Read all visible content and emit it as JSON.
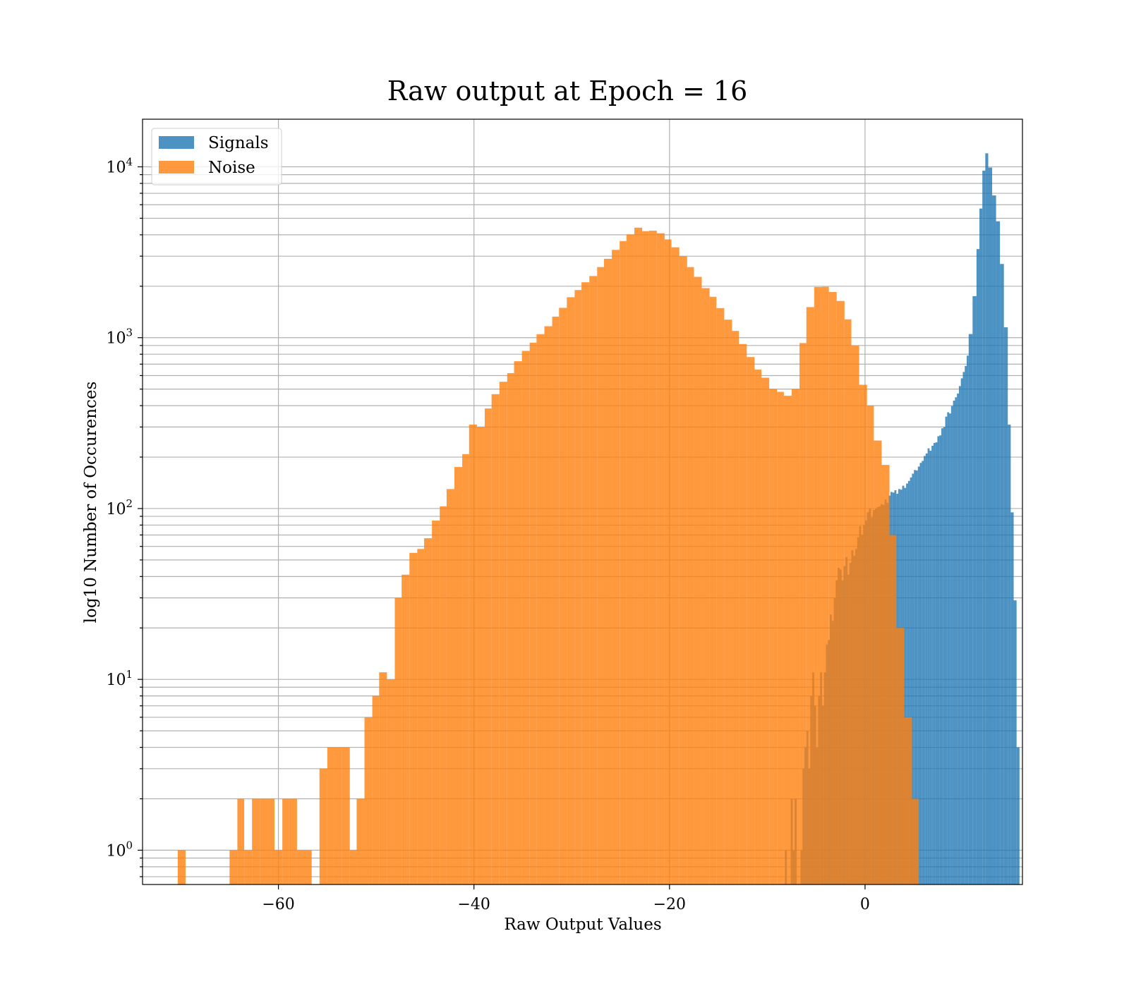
{
  "chart_data": {
    "type": "bar",
    "title": "Raw output at Epoch = 16",
    "xlabel": "Raw Output Values",
    "ylabel": "log10 Number of Occurences",
    "yscale": "log",
    "xlim": [
      -73.9,
      16.1
    ],
    "ylim": [
      0.63,
      19000
    ],
    "x_ticks": [
      -60,
      -40,
      -20,
      0
    ],
    "x_tick_labels": [
      "−60",
      "−40",
      "−20",
      "0"
    ],
    "y_tick_exponents": [
      0,
      1,
      2,
      3,
      4
    ],
    "y_tick_base": "10",
    "grid": true,
    "legend_position": "top-left",
    "series": [
      {
        "name": "Signals",
        "color": "#1f77b4",
        "opacity": 0.8,
        "bins": [
          [
            -8.2,
            -8.0,
            1
          ],
          [
            -7.6,
            -7.4,
            2
          ],
          [
            -7.4,
            -7.2,
            1
          ],
          [
            -7.2,
            -7.0,
            2
          ],
          [
            -6.6,
            -6.4,
            1
          ],
          [
            -6.4,
            -6.2,
            3
          ],
          [
            -6.2,
            -6.0,
            4
          ],
          [
            -6.0,
            -5.8,
            5
          ],
          [
            -5.8,
            -5.6,
            3
          ],
          [
            -5.6,
            -5.4,
            8
          ],
          [
            -5.4,
            -5.2,
            11
          ],
          [
            -5.2,
            -5.0,
            7
          ],
          [
            -5.0,
            -4.8,
            4
          ],
          [
            -4.8,
            -4.6,
            8
          ],
          [
            -4.6,
            -4.4,
            11
          ],
          [
            -4.4,
            -4.2,
            7
          ],
          [
            -4.2,
            -4.0,
            11
          ],
          [
            -4.0,
            -3.8,
            16
          ],
          [
            -3.8,
            -3.6,
            17
          ],
          [
            -3.6,
            -3.4,
            24
          ],
          [
            -3.4,
            -3.2,
            22
          ],
          [
            -3.2,
            -3.0,
            30
          ],
          [
            -3.0,
            -2.8,
            38
          ],
          [
            -2.8,
            -2.6,
            45
          ],
          [
            -2.6,
            -2.4,
            44
          ],
          [
            -2.4,
            -2.2,
            38
          ],
          [
            -2.2,
            -2.0,
            46
          ],
          [
            -2.0,
            -1.8,
            52
          ],
          [
            -1.8,
            -1.6,
            41
          ],
          [
            -1.6,
            -1.4,
            48
          ],
          [
            -1.4,
            -1.2,
            57
          ],
          [
            -1.2,
            -1.0,
            53
          ],
          [
            -1.0,
            -0.8,
            58
          ],
          [
            -0.8,
            -0.6,
            68
          ],
          [
            -0.6,
            -0.4,
            79
          ],
          [
            -0.4,
            -0.2,
            70
          ],
          [
            -0.2,
            0.0,
            80
          ],
          [
            0.0,
            0.2,
            85
          ],
          [
            0.2,
            0.4,
            95
          ],
          [
            0.4,
            0.6,
            100
          ],
          [
            0.6,
            0.8,
            89
          ],
          [
            0.8,
            1.0,
            98
          ],
          [
            1.0,
            1.2,
            100
          ],
          [
            1.2,
            1.4,
            102
          ],
          [
            1.4,
            1.6,
            103
          ],
          [
            1.6,
            1.8,
            106
          ],
          [
            1.8,
            2.0,
            105
          ],
          [
            2.0,
            2.2,
            113
          ],
          [
            2.2,
            2.4,
            108
          ],
          [
            2.4,
            2.6,
            119
          ],
          [
            2.6,
            2.8,
            125
          ],
          [
            2.8,
            3.0,
            124
          ],
          [
            3.0,
            3.2,
            128
          ],
          [
            3.2,
            3.4,
            122
          ],
          [
            3.4,
            3.6,
            130
          ],
          [
            3.6,
            3.8,
            129
          ],
          [
            3.8,
            4.0,
            136
          ],
          [
            4.0,
            4.2,
            132
          ],
          [
            4.2,
            4.4,
            140
          ],
          [
            4.4,
            4.6,
            145
          ],
          [
            4.6,
            4.8,
            152
          ],
          [
            4.8,
            5.0,
            160
          ],
          [
            5.0,
            5.2,
            168
          ],
          [
            5.2,
            5.4,
            167
          ],
          [
            5.4,
            5.6,
            176
          ],
          [
            5.6,
            5.8,
            185
          ],
          [
            5.8,
            6.0,
            190
          ],
          [
            6.0,
            6.2,
            203
          ],
          [
            6.2,
            6.4,
            210
          ],
          [
            6.4,
            6.6,
            225
          ],
          [
            6.6,
            6.8,
            218
          ],
          [
            6.8,
            7.0,
            233
          ],
          [
            7.0,
            7.2,
            242
          ],
          [
            7.2,
            7.4,
            244
          ],
          [
            7.4,
            7.6,
            265
          ],
          [
            7.6,
            7.8,
            268
          ],
          [
            7.8,
            8.0,
            295
          ],
          [
            8.0,
            8.2,
            300
          ],
          [
            8.2,
            8.4,
            345
          ],
          [
            8.4,
            8.6,
            366
          ],
          [
            8.6,
            8.8,
            360
          ],
          [
            8.8,
            9.0,
            398
          ],
          [
            9.0,
            9.2,
            428
          ],
          [
            9.2,
            9.4,
            448
          ],
          [
            9.4,
            9.6,
            471
          ],
          [
            9.6,
            9.8,
            521
          ],
          [
            9.8,
            10.0,
            578
          ],
          [
            10.0,
            10.2,
            630
          ],
          [
            10.2,
            10.4,
            683
          ],
          [
            10.4,
            10.6,
            785
          ],
          [
            10.6,
            11.0,
            1050
          ],
          [
            11.0,
            11.4,
            1750
          ],
          [
            11.4,
            11.7,
            3300
          ],
          [
            11.7,
            12.0,
            5700
          ],
          [
            12.0,
            12.3,
            9500
          ],
          [
            12.3,
            12.6,
            12000
          ],
          [
            12.6,
            13.0,
            9900
          ],
          [
            13.0,
            13.4,
            6800
          ],
          [
            13.4,
            13.8,
            4800
          ],
          [
            13.8,
            14.2,
            2700
          ],
          [
            14.2,
            14.6,
            1150
          ],
          [
            14.6,
            14.9,
            310
          ],
          [
            14.9,
            15.2,
            95
          ],
          [
            15.2,
            15.5,
            29
          ],
          [
            15.5,
            15.8,
            4
          ]
        ]
      },
      {
        "name": "Noise",
        "color": "#ff7f0e",
        "opacity": 0.8,
        "bins": [
          [
            -70.3,
            -69.5,
            1
          ],
          [
            -65.0,
            -64.2,
            1
          ],
          [
            -64.2,
            -63.5,
            2
          ],
          [
            -63.5,
            -62.7,
            1
          ],
          [
            -62.7,
            -61.9,
            2
          ],
          [
            -61.9,
            -61.2,
            2
          ],
          [
            -61.2,
            -60.4,
            2
          ],
          [
            -60.4,
            -59.6,
            1
          ],
          [
            -59.6,
            -58.9,
            2
          ],
          [
            -58.9,
            -58.1,
            2
          ],
          [
            -58.1,
            -57.3,
            1
          ],
          [
            -57.3,
            -56.6,
            1
          ],
          [
            -56.6,
            -55.8,
            0
          ],
          [
            -55.8,
            -55.0,
            3
          ],
          [
            -55.0,
            -54.3,
            4
          ],
          [
            -54.3,
            -53.5,
            4
          ],
          [
            -53.5,
            -52.7,
            4
          ],
          [
            -52.7,
            -52.0,
            1
          ],
          [
            -52.0,
            -51.2,
            2
          ],
          [
            -51.2,
            -50.4,
            6
          ],
          [
            -50.4,
            -49.7,
            8
          ],
          [
            -49.7,
            -48.9,
            11
          ],
          [
            -48.9,
            -48.1,
            10
          ],
          [
            -48.1,
            -47.4,
            30
          ],
          [
            -47.4,
            -46.6,
            41
          ],
          [
            -46.6,
            -45.8,
            55
          ],
          [
            -45.8,
            -45.1,
            58
          ],
          [
            -45.1,
            -44.3,
            67
          ],
          [
            -44.3,
            -43.5,
            85
          ],
          [
            -43.5,
            -42.8,
            103
          ],
          [
            -42.8,
            -42.0,
            130
          ],
          [
            -42.0,
            -41.2,
            175
          ],
          [
            -41.2,
            -40.5,
            208
          ],
          [
            -40.5,
            -39.7,
            310
          ],
          [
            -39.7,
            -38.9,
            300
          ],
          [
            -38.9,
            -38.2,
            385
          ],
          [
            -38.2,
            -37.4,
            467
          ],
          [
            -37.4,
            -36.6,
            552
          ],
          [
            -36.6,
            -35.9,
            620
          ],
          [
            -35.9,
            -35.1,
            728
          ],
          [
            -35.1,
            -34.3,
            837
          ],
          [
            -34.3,
            -33.6,
            935
          ],
          [
            -33.6,
            -32.8,
            1048
          ],
          [
            -32.8,
            -32.0,
            1167
          ],
          [
            -32.0,
            -31.3,
            1328
          ],
          [
            -31.3,
            -30.5,
            1495
          ],
          [
            -30.5,
            -29.7,
            1725
          ],
          [
            -29.7,
            -29.0,
            1900
          ],
          [
            -29.0,
            -28.2,
            2110
          ],
          [
            -28.2,
            -27.4,
            2295
          ],
          [
            -27.4,
            -26.7,
            2590
          ],
          [
            -26.7,
            -25.9,
            2895
          ],
          [
            -25.9,
            -25.1,
            3265
          ],
          [
            -25.1,
            -24.4,
            3675
          ],
          [
            -24.4,
            -23.6,
            4020
          ],
          [
            -23.6,
            -22.8,
            4405
          ],
          [
            -22.8,
            -22.1,
            4200
          ],
          [
            -22.1,
            -21.3,
            4230
          ],
          [
            -21.3,
            -20.5,
            4085
          ],
          [
            -20.5,
            -19.8,
            3760
          ],
          [
            -19.8,
            -19.0,
            3380
          ],
          [
            -19.0,
            -18.2,
            3000
          ],
          [
            -18.2,
            -17.5,
            2590
          ],
          [
            -17.5,
            -16.7,
            2270
          ],
          [
            -16.7,
            -15.9,
            1950
          ],
          [
            -15.9,
            -15.2,
            1735
          ],
          [
            -15.2,
            -14.4,
            1490
          ],
          [
            -14.4,
            -13.6,
            1275
          ],
          [
            -13.6,
            -12.9,
            1095
          ],
          [
            -12.9,
            -12.1,
            918
          ],
          [
            -12.1,
            -11.3,
            770
          ],
          [
            -11.3,
            -10.6,
            650
          ],
          [
            -10.6,
            -9.8,
            583
          ],
          [
            -9.8,
            -9.0,
            500
          ],
          [
            -9.0,
            -8.3,
            482
          ],
          [
            -8.3,
            -7.5,
            457
          ],
          [
            -7.5,
            -6.7,
            500
          ],
          [
            -6.7,
            -6.0,
            930
          ],
          [
            -6.0,
            -5.2,
            1510
          ],
          [
            -5.2,
            -4.4,
            1980
          ],
          [
            -4.4,
            -3.7,
            1985
          ],
          [
            -3.7,
            -2.9,
            1850
          ],
          [
            -2.9,
            -2.1,
            1640
          ],
          [
            -2.1,
            -1.4,
            1280
          ],
          [
            -1.4,
            -0.6,
            897
          ],
          [
            -0.6,
            0.2,
            530
          ],
          [
            0.2,
            0.9,
            400
          ],
          [
            0.9,
            1.7,
            250
          ],
          [
            1.7,
            2.5,
            180
          ],
          [
            2.5,
            3.2,
            70
          ],
          [
            3.2,
            4.0,
            20
          ],
          [
            4.0,
            4.8,
            6
          ],
          [
            4.8,
            5.5,
            2
          ]
        ]
      }
    ]
  }
}
